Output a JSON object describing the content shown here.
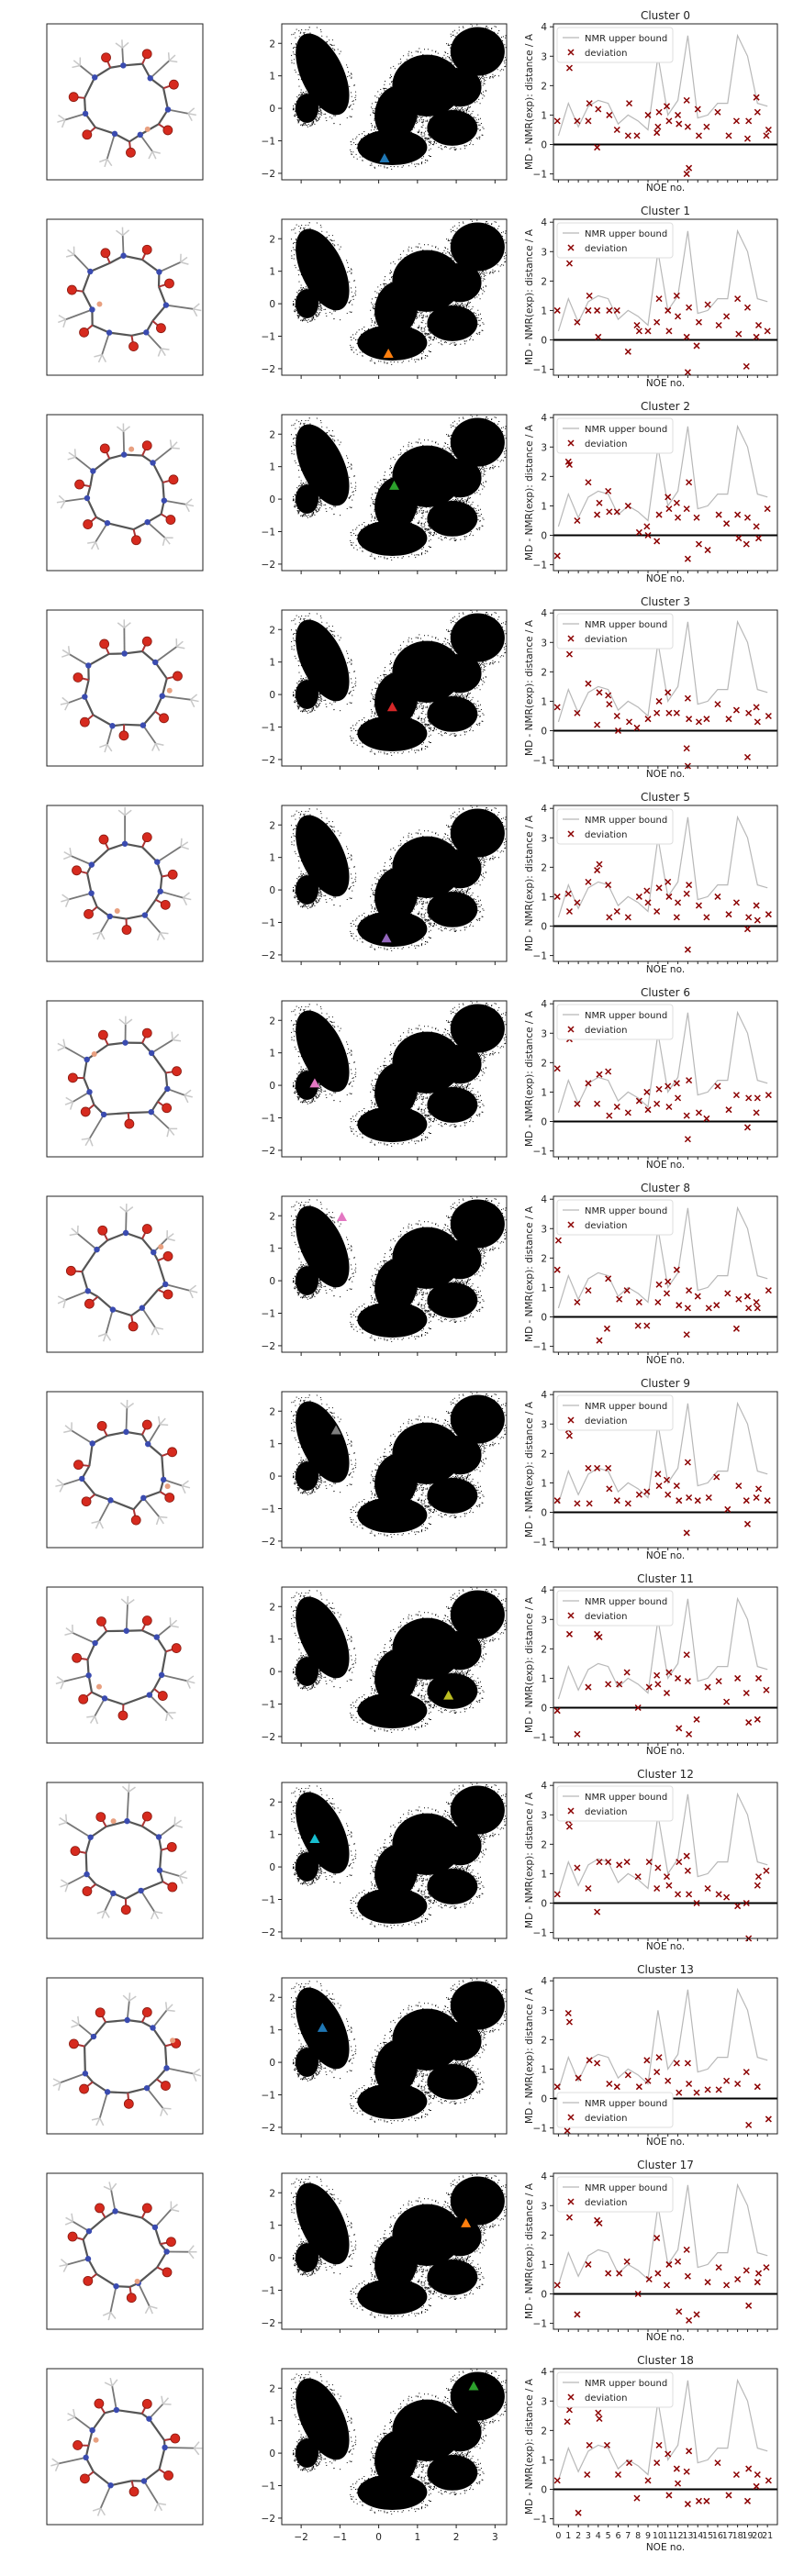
{
  "figure": {
    "rows": [
      {
        "cluster": "Cluster 0",
        "marker_color": "#1f77b4",
        "marker_x": 0.15,
        "marker_y": -1.55
      },
      {
        "cluster": "Cluster 1",
        "marker_color": "#ff7f0e",
        "marker_x": 0.25,
        "marker_y": -1.55
      },
      {
        "cluster": "Cluster 2",
        "marker_color": "#2ca02c",
        "marker_x": 0.4,
        "marker_y": 0.4
      },
      {
        "cluster": "Cluster 3",
        "marker_color": "#d62728",
        "marker_x": 0.35,
        "marker_y": -0.4
      },
      {
        "cluster": "Cluster 5",
        "marker_color": "#9467bd",
        "marker_x": 0.2,
        "marker_y": -1.5
      },
      {
        "cluster": "Cluster 6",
        "marker_color": "#e377c2",
        "marker_x": -1.65,
        "marker_y": 0.05
      },
      {
        "cluster": "Cluster 8",
        "marker_color": "#e377c2",
        "marker_x": -0.95,
        "marker_y": 1.95
      },
      {
        "cluster": "Cluster 9",
        "marker_color": "#7f7f7f",
        "marker_x": -1.1,
        "marker_y": 1.4
      },
      {
        "cluster": "Cluster 11",
        "marker_color": "#bcbd22",
        "marker_x": 1.8,
        "marker_y": -0.75
      },
      {
        "cluster": "Cluster 12",
        "marker_color": "#17becf",
        "marker_x": -1.65,
        "marker_y": 0.85
      },
      {
        "cluster": "Cluster 13",
        "marker_color": "#1f77b4",
        "marker_x": -1.45,
        "marker_y": 1.05
      },
      {
        "cluster": "Cluster 17",
        "marker_color": "#ff7f0e",
        "marker_x": 2.25,
        "marker_y": 1.05
      },
      {
        "cluster": "Cluster 18",
        "marker_color": "#2ca02c",
        "marker_x": 2.45,
        "marker_y": 2.05
      }
    ],
    "legend": {
      "upper_bound": "NMR upper bound",
      "deviation": "deviation"
    },
    "ylabel": "MD - NMR(exp): distance / A",
    "xlabel": "NOE no.",
    "xticks_bottom": [
      "0",
      "1",
      "2",
      "3",
      "4",
      "5",
      "6",
      "7",
      "8",
      "9",
      "10",
      "11",
      "12",
      "13",
      "14",
      "15",
      "16",
      "17",
      "18",
      "19",
      "20",
      "21"
    ],
    "map_xticks": [
      "−2",
      "−1",
      "0",
      "1",
      "2",
      "3"
    ],
    "map_yticks": [
      "2",
      "1",
      "0",
      "−1",
      "−2"
    ],
    "noe_yticks": [
      "4",
      "3",
      "2",
      "1",
      "0",
      "−1"
    ]
  },
  "chart_data": {
    "type": "scatter",
    "panels": [
      "structure",
      "2D projection",
      "NOE deviation"
    ],
    "map_xlim": [
      -2.5,
      3.3
    ],
    "map_ylim": [
      -2.2,
      2.6
    ],
    "noe_xlim": [
      -0.5,
      22.0
    ],
    "noe_ylim": [
      -1.2,
      4.1
    ],
    "xlabel": "NOE no.",
    "ylabel": "MD - NMR(exp): distance / A",
    "upper_bound": {
      "name": "NMR upper bound",
      "x": [
        0,
        1,
        2,
        3,
        4,
        5,
        6,
        7,
        8,
        9,
        10,
        11,
        12,
        13,
        14,
        15,
        16,
        17,
        18,
        19,
        20,
        21
      ],
      "y": [
        0.3,
        1.4,
        0.6,
        1.3,
        1.5,
        1.4,
        0.7,
        1.0,
        0.8,
        0.5,
        3.0,
        1.0,
        1.5,
        3.7,
        0.9,
        1.0,
        1.4,
        1.4,
        3.7,
        3.0,
        1.4,
        1.3
      ]
    },
    "deviation_series": [
      {
        "cluster": "Cluster 0",
        "x": [
          0,
          1,
          1,
          2,
          3,
          3,
          4,
          4,
          5,
          6,
          7,
          7,
          8,
          9,
          10,
          10,
          10,
          11,
          11,
          12,
          12,
          13,
          13,
          13,
          13,
          14,
          14,
          15,
          16,
          17,
          18,
          19,
          19,
          20,
          20,
          21,
          21
        ],
        "y": [
          0.8,
          3.0,
          2.6,
          0.8,
          0.8,
          1.4,
          -0.1,
          1.2,
          1.0,
          0.5,
          0.3,
          1.4,
          0.3,
          1.0,
          1.1,
          0.4,
          0.6,
          0.8,
          1.3,
          1.0,
          0.7,
          1.5,
          0.6,
          -0.8,
          -1.0,
          1.2,
          0.3,
          0.6,
          1.1,
          0.3,
          0.8,
          0.2,
          0.8,
          1.6,
          1.1,
          0.5,
          0.3
        ]
      },
      {
        "cluster": "Cluster 1",
        "x": [
          0,
          1,
          1,
          2,
          3,
          3,
          4,
          4,
          5,
          6,
          7,
          8,
          8,
          9,
          10,
          10,
          11,
          11,
          12,
          12,
          13,
          13,
          13,
          14,
          14,
          15,
          16,
          17,
          18,
          18,
          19,
          19,
          20,
          20,
          21
        ],
        "y": [
          1.0,
          2.9,
          2.6,
          0.6,
          1.0,
          1.5,
          1.0,
          0.1,
          1.0,
          1.0,
          -0.4,
          0.3,
          0.5,
          0.3,
          1.4,
          0.6,
          1.0,
          0.3,
          1.5,
          0.8,
          1.1,
          0.1,
          -1.1,
          0.6,
          -0.2,
          1.2,
          0.5,
          0.8,
          1.4,
          0.2,
          -0.9,
          1.1,
          0.5,
          0.1,
          0.3
        ]
      },
      {
        "cluster": "Cluster 2",
        "x": [
          0,
          1,
          1,
          2,
          3,
          4,
          4,
          5,
          5,
          6,
          7,
          8,
          9,
          9,
          10,
          10,
          11,
          11,
          12,
          12,
          13,
          13,
          13,
          14,
          14,
          15,
          16,
          17,
          18,
          18,
          19,
          19,
          20,
          20,
          21
        ],
        "y": [
          -0.7,
          2.5,
          2.4,
          0.5,
          1.8,
          1.1,
          0.7,
          1.5,
          0.8,
          0.8,
          1.0,
          0.1,
          0.3,
          0.0,
          0.7,
          -0.2,
          1.3,
          0.9,
          1.1,
          0.6,
          1.8,
          0.9,
          -0.8,
          -0.3,
          0.6,
          -0.5,
          0.7,
          0.4,
          0.7,
          -0.1,
          -0.3,
          0.6,
          -0.1,
          0.3,
          0.9
        ]
      },
      {
        "cluster": "Cluster 3",
        "x": [
          0,
          1,
          1,
          2,
          3,
          4,
          4,
          5,
          5,
          6,
          6,
          7,
          8,
          9,
          10,
          10,
          11,
          11,
          12,
          13,
          13,
          13,
          13,
          14,
          15,
          16,
          17,
          18,
          19,
          19,
          20,
          20,
          21
        ],
        "y": [
          0.8,
          3.1,
          2.6,
          0.6,
          1.6,
          1.3,
          0.2,
          1.2,
          0.9,
          0.5,
          0.0,
          0.3,
          0.1,
          0.4,
          1.0,
          0.6,
          1.3,
          0.6,
          0.6,
          1.1,
          0.4,
          -0.6,
          -1.2,
          0.3,
          0.4,
          0.9,
          0.4,
          0.7,
          -0.9,
          0.6,
          0.8,
          0.3,
          0.5
        ]
      },
      {
        "cluster": "Cluster 5",
        "x": [
          0,
          1,
          1,
          2,
          3,
          4,
          4,
          5,
          5,
          6,
          7,
          8,
          9,
          9,
          10,
          10,
          11,
          11,
          12,
          12,
          13,
          13,
          13,
          14,
          15,
          16,
          17,
          18,
          19,
          19,
          20,
          20,
          21
        ],
        "y": [
          1.0,
          1.1,
          0.5,
          0.8,
          1.5,
          2.1,
          1.9,
          1.4,
          0.3,
          0.5,
          0.3,
          1.0,
          1.2,
          0.8,
          1.3,
          0.5,
          1.5,
          1.0,
          0.3,
          0.8,
          1.4,
          1.1,
          -0.8,
          0.7,
          0.3,
          1.0,
          0.4,
          0.8,
          -0.1,
          0.3,
          0.7,
          0.2,
          0.4
        ]
      },
      {
        "cluster": "Cluster 6",
        "x": [
          0,
          1,
          1,
          2,
          3,
          4,
          4,
          5,
          5,
          6,
          7,
          8,
          9,
          9,
          10,
          10,
          11,
          11,
          12,
          12,
          13,
          13,
          13,
          14,
          15,
          16,
          17,
          18,
          19,
          19,
          20,
          20,
          21
        ],
        "y": [
          1.8,
          3.2,
          2.8,
          0.6,
          1.3,
          1.6,
          0.6,
          1.7,
          0.2,
          0.5,
          0.3,
          0.7,
          1.0,
          0.4,
          1.1,
          0.6,
          1.2,
          0.5,
          1.3,
          0.8,
          1.4,
          0.2,
          -0.6,
          0.3,
          0.1,
          1.2,
          0.4,
          0.9,
          -0.2,
          0.8,
          0.3,
          0.8,
          0.9
        ]
      },
      {
        "cluster": "Cluster 8",
        "x": [
          0,
          0,
          1,
          2,
          3,
          4,
          5,
          5,
          6,
          7,
          8,
          8,
          9,
          10,
          10,
          11,
          11,
          12,
          12,
          13,
          13,
          13,
          14,
          15,
          16,
          17,
          18,
          18,
          19,
          19,
          20,
          20,
          21
        ],
        "y": [
          1.6,
          2.6,
          3.5,
          0.5,
          0.9,
          -0.8,
          -0.4,
          1.3,
          0.6,
          0.9,
          -0.3,
          0.5,
          -0.3,
          0.5,
          1.1,
          0.8,
          1.2,
          0.4,
          1.6,
          0.3,
          0.9,
          -0.6,
          0.7,
          0.3,
          0.4,
          0.8,
          0.6,
          -0.4,
          0.7,
          0.3,
          0.5,
          0.3,
          0.9
        ]
      },
      {
        "cluster": "Cluster 9",
        "x": [
          0,
          1,
          1,
          2,
          3,
          3,
          4,
          5,
          5,
          6,
          7,
          8,
          9,
          10,
          10,
          11,
          11,
          12,
          12,
          13,
          13,
          13,
          14,
          15,
          16,
          17,
          18,
          19,
          19,
          20,
          20,
          21
        ],
        "y": [
          0.4,
          2.8,
          2.6,
          0.3,
          1.5,
          0.3,
          1.5,
          1.5,
          0.8,
          0.4,
          0.3,
          0.6,
          0.7,
          1.3,
          0.9,
          1.1,
          0.6,
          0.4,
          0.9,
          1.7,
          0.5,
          -0.7,
          0.4,
          0.5,
          1.2,
          0.1,
          0.9,
          0.4,
          -0.4,
          0.8,
          0.5,
          0.4
        ]
      },
      {
        "cluster": "Cluster 11",
        "x": [
          0,
          1,
          1,
          2,
          3,
          4,
          4,
          5,
          6,
          7,
          8,
          9,
          10,
          10,
          11,
          11,
          12,
          12,
          13,
          13,
          13,
          14,
          15,
          16,
          17,
          18,
          19,
          19,
          20,
          20,
          21
        ],
        "y": [
          -0.1,
          3.1,
          2.5,
          -0.9,
          0.7,
          2.4,
          2.5,
          0.8,
          0.8,
          1.2,
          0.0,
          0.7,
          1.1,
          0.8,
          1.2,
          0.5,
          1.0,
          -0.7,
          1.8,
          0.9,
          -0.9,
          -0.4,
          0.7,
          0.9,
          0.2,
          1.0,
          -0.5,
          0.5,
          -0.4,
          1.0,
          0.6
        ]
      },
      {
        "cluster": "Cluster 12",
        "x": [
          0,
          1,
          1,
          2,
          3,
          4,
          4,
          5,
          6,
          7,
          8,
          9,
          10,
          10,
          11,
          11,
          12,
          12,
          13,
          13,
          13,
          14,
          15,
          16,
          17,
          18,
          19,
          19,
          20,
          20,
          21
        ],
        "y": [
          0.3,
          2.8,
          2.6,
          1.2,
          0.5,
          1.4,
          -0.3,
          1.4,
          1.3,
          1.4,
          0.9,
          1.4,
          0.5,
          1.2,
          0.6,
          0.9,
          0.3,
          1.4,
          1.6,
          1.1,
          0.3,
          0.0,
          0.5,
          0.3,
          0.2,
          -0.1,
          -1.2,
          0.0,
          0.6,
          0.9,
          1.1
        ]
      },
      {
        "cluster": "Cluster 13",
        "x": [
          0,
          1,
          1,
          1,
          2,
          3,
          4,
          5,
          5,
          6,
          7,
          8,
          9,
          9,
          10,
          10,
          11,
          12,
          12,
          13,
          13,
          14,
          15,
          16,
          17,
          18,
          19,
          19,
          20,
          21
        ],
        "y": [
          0.4,
          2.9,
          2.6,
          -1.1,
          0.7,
          1.3,
          1.2,
          -0.1,
          0.5,
          0.4,
          0.8,
          0.4,
          1.3,
          0.6,
          1.4,
          0.9,
          0.6,
          0.2,
          1.2,
          1.2,
          0.5,
          0.2,
          0.3,
          0.3,
          0.6,
          0.5,
          -0.9,
          0.9,
          0.4,
          -0.7
        ]
      },
      {
        "cluster": "Cluster 17",
        "x": [
          0,
          1,
          1,
          2,
          3,
          4,
          4,
          5,
          6,
          7,
          8,
          9,
          10,
          10,
          11,
          11,
          12,
          12,
          13,
          13,
          13,
          14,
          15,
          16,
          17,
          18,
          19,
          19,
          20,
          20,
          21
        ],
        "y": [
          0.3,
          3.0,
          2.6,
          -0.7,
          1.0,
          2.4,
          2.5,
          0.7,
          0.7,
          1.1,
          0.0,
          0.5,
          1.9,
          0.7,
          1.0,
          0.3,
          1.1,
          -0.6,
          1.5,
          0.6,
          -0.9,
          -0.7,
          0.4,
          0.9,
          0.3,
          0.5,
          -0.4,
          0.8,
          0.4,
          0.7,
          0.9
        ]
      },
      {
        "cluster": "Cluster 18",
        "x": [
          0,
          1,
          1,
          1,
          2,
          3,
          3,
          4,
          4,
          5,
          6,
          7,
          8,
          9,
          10,
          10,
          11,
          11,
          12,
          12,
          13,
          13,
          13,
          14,
          15,
          16,
          17,
          18,
          19,
          19,
          20,
          20,
          21
        ],
        "y": [
          0.3,
          3.1,
          2.7,
          2.3,
          -0.8,
          1.5,
          0.5,
          2.6,
          2.4,
          1.5,
          0.5,
          0.9,
          -0.3,
          0.3,
          1.5,
          0.9,
          1.2,
          -0.2,
          0.7,
          0.2,
          1.3,
          0.6,
          -0.5,
          -0.4,
          -0.4,
          0.9,
          -0.2,
          0.5,
          -0.4,
          0.7,
          0.1,
          0.5,
          0.3
        ]
      }
    ]
  }
}
